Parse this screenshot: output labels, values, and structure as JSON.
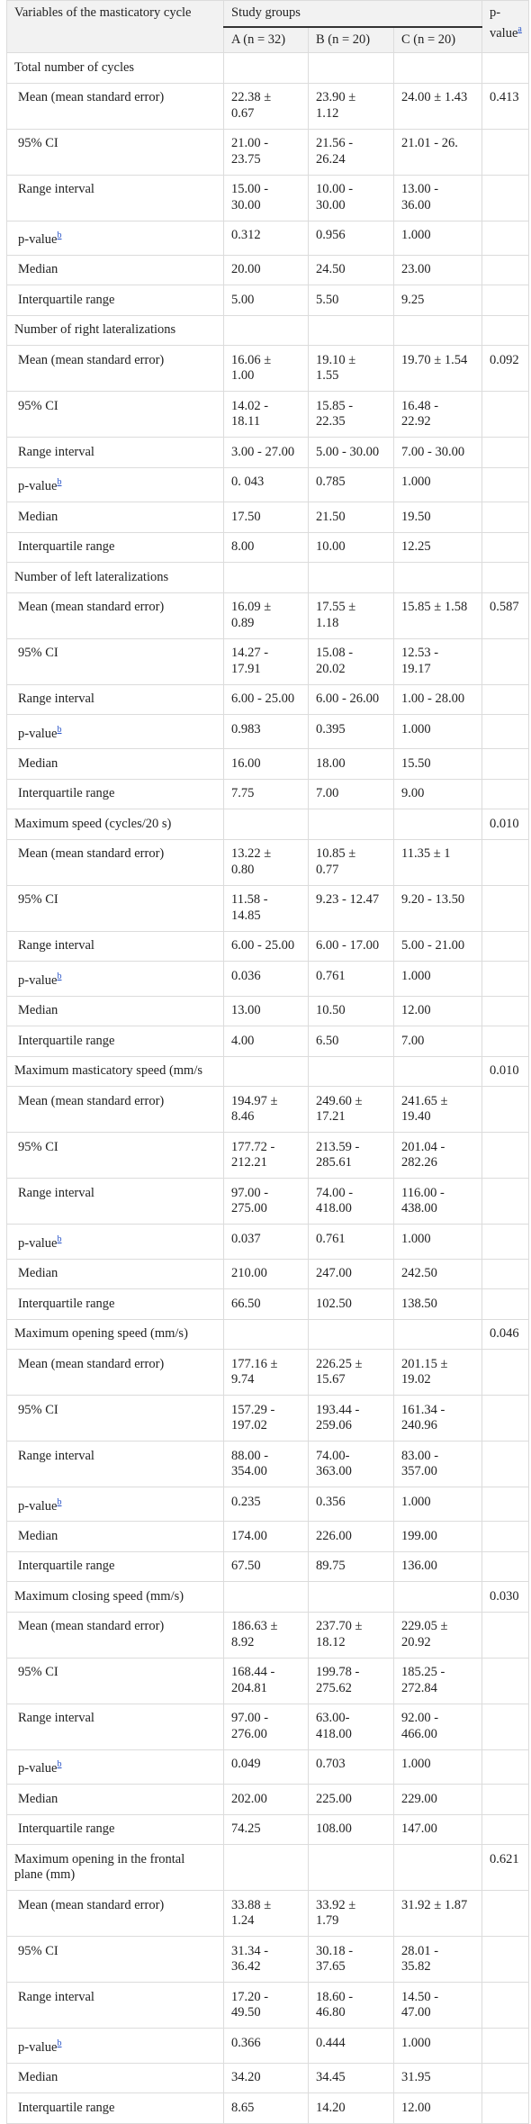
{
  "header": {
    "variable": "Variables of the masticatory cycle",
    "groups": "Study groups",
    "columns": [
      "A (n = 32)",
      "B (n = 20)",
      "C (n = 20)"
    ],
    "p_value": "p-value",
    "p_value_sup": "a"
  },
  "sections": [
    {
      "title": "Total number of cycles",
      "rows": [
        {
          "label": "Mean (mean standard error)",
          "cells": [
            "22.38 ± 0.67",
            "23.90 ± 1.12",
            "24.00 ± 1.43"
          ],
          "p_value": "0.413"
        },
        {
          "label": "95% CI",
          "cells": [
            "21.00 - 23.75",
            "21.56 - 26.24",
            "21.01 - 26."
          ]
        },
        {
          "label": "Range interval",
          "cells": [
            "15.00 - 30.00",
            "10.00 - 30.00",
            "13.00 - 36.00"
          ]
        },
        {
          "label": "p-value",
          "sup": "b",
          "cells": [
            "0.312",
            "0.956",
            "1.000"
          ]
        },
        {
          "label": "Median",
          "cells": [
            "20.00",
            "24.50",
            "23.00"
          ]
        },
        {
          "label": "Interquartile range",
          "cells": [
            "5.00",
            "5.50",
            "9.25"
          ]
        }
      ]
    },
    {
      "title": "Number of right lateralizations",
      "rows": [
        {
          "label": "Mean (mean standard error)",
          "cells": [
            "16.06 ± 1.00",
            "19.10 ± 1.55",
            "19.70 ± 1.54"
          ],
          "p_value": "0.092"
        },
        {
          "label": "95% CI",
          "cells": [
            "14.02 - 18.11",
            "15.85 - 22.35",
            "16.48 - 22.92"
          ]
        },
        {
          "label": "Range interval",
          "cells": [
            "3.00 - 27.00",
            "5.00 - 30.00",
            "7.00 - 30.00"
          ]
        },
        {
          "label": "p-value",
          "sup": "b",
          "cells": [
            "0. 043",
            "0.785",
            "1.000"
          ]
        },
        {
          "label": "Median",
          "cells": [
            "17.50",
            "21.50",
            "19.50"
          ]
        },
        {
          "label": "Interquartile range",
          "cells": [
            "8.00",
            "10.00",
            "12.25"
          ]
        }
      ]
    },
    {
      "title": "Number of left lateralizations",
      "rows": [
        {
          "label": "Mean (mean standard error)",
          "cells": [
            "16.09 ± 0.89",
            "17.55 ± 1.18",
            "15.85 ± 1.58"
          ],
          "p_value": "0.587"
        },
        {
          "label": "95% CI",
          "cells": [
            "14.27 - 17.91",
            "15.08 - 20.02",
            "12.53 - 19.17"
          ]
        },
        {
          "label": "Range interval",
          "cells": [
            "6.00 - 25.00",
            "6.00 - 26.00",
            "1.00 - 28.00"
          ]
        },
        {
          "label": "p-value",
          "sup": "b",
          "cells": [
            "0.983",
            "0.395",
            "1.000"
          ]
        },
        {
          "label": "Median",
          "cells": [
            "16.00",
            "18.00",
            "15.50"
          ]
        },
        {
          "label": "Interquartile range",
          "cells": [
            "7.75",
            "7.00",
            "9.00"
          ]
        }
      ]
    },
    {
      "title": "Maximum speed (cycles/20 s)",
      "p_value": "0.010",
      "rows": [
        {
          "label": "Mean (mean standard error)",
          "cells": [
            "13.22 ± 0.80",
            "10.85 ± 0.77",
            "11.35 ± 1"
          ]
        },
        {
          "label": "95% CI",
          "cells": [
            "11.58 - 14.85",
            "9.23 - 12.47",
            "9.20 - 13.50"
          ]
        },
        {
          "label": "Range interval",
          "cells": [
            "6.00 - 25.00",
            "6.00 - 17.00",
            "5.00 - 21.00"
          ]
        },
        {
          "label": "p-value",
          "sup": "b",
          "cells": [
            "0.036",
            "0.761",
            "1.000"
          ]
        },
        {
          "label": "Median",
          "cells": [
            "13.00",
            "10.50",
            "12.00"
          ]
        },
        {
          "label": "Interquartile range",
          "cells": [
            "4.00",
            "6.50",
            "7.00"
          ]
        }
      ]
    },
    {
      "title": "Maximum masticatory speed (mm/s",
      "p_value": "0.010",
      "rows": [
        {
          "label": "Mean (mean standard error)",
          "cells": [
            "194.97 ± 8.46",
            "249.60 ± 17.21",
            "241.65 ± 19.40"
          ]
        },
        {
          "label": "95% CI",
          "cells": [
            "177.72 - 212.21",
            "213.59 - 285.61",
            "201.04 - 282.26"
          ]
        },
        {
          "label": "Range interval",
          "cells": [
            "97.00 - 275.00",
            "74.00 - 418.00",
            "116.00 - 438.00"
          ]
        },
        {
          "label": "p-value",
          "sup": "b",
          "cells": [
            "0.037",
            "0.761",
            "1.000"
          ]
        },
        {
          "label": "Median",
          "cells": [
            "210.00",
            "247.00",
            "242.50"
          ]
        },
        {
          "label": "Interquartile range",
          "cells": [
            "66.50",
            "102.50",
            "138.50"
          ]
        }
      ]
    },
    {
      "title": "Maximum opening speed (mm/s)",
      "p_value": "0.046",
      "rows": [
        {
          "label": "Mean (mean standard error)",
          "cells": [
            "177.16 ± 9.74",
            "226.25 ± 15.67",
            "201.15 ± 19.02"
          ]
        },
        {
          "label": "95% CI",
          "cells": [
            "157.29 - 197.02",
            "193.44 - 259.06",
            "161.34 - 240.96"
          ]
        },
        {
          "label": "Range interval",
          "cells": [
            "88.00 - 354.00",
            "74.00- 363.00",
            "83.00 - 357.00"
          ]
        },
        {
          "label": "p-value",
          "sup": "b",
          "cells": [
            "0.235",
            "0.356",
            "1.000"
          ]
        },
        {
          "label": "Median",
          "cells": [
            "174.00",
            "226.00",
            "199.00"
          ]
        },
        {
          "label": "Interquartile range",
          "cells": [
            "67.50",
            "89.75",
            "136.00"
          ]
        }
      ]
    },
    {
      "title": "Maximum closing speed (mm/s)",
      "p_value": "0.030",
      "rows": [
        {
          "label": "Mean (mean standard error)",
          "cells": [
            "186.63 ± 8.92",
            "237.70 ± 18.12",
            "229.05 ± 20.92"
          ]
        },
        {
          "label": "95% CI",
          "cells": [
            "168.44 - 204.81",
            "199.78 - 275.62",
            "185.25 - 272.84"
          ]
        },
        {
          "label": "Range interval",
          "cells": [
            "97.00 - 276.00",
            "63.00- 418.00",
            "92.00 - 466.00"
          ]
        },
        {
          "label": "p-value",
          "sup": "b",
          "cells": [
            "0.049",
            "0.703",
            "1.000"
          ]
        },
        {
          "label": "Median",
          "cells": [
            "202.00",
            "225.00",
            "229.00"
          ]
        },
        {
          "label": "Interquartile range",
          "cells": [
            "74.25",
            "108.00",
            "147.00"
          ]
        }
      ]
    },
    {
      "title": "Maximum opening in the frontal plane (mm)",
      "p_value": "0.621",
      "rows": [
        {
          "label": "Mean (mean standard error)",
          "cells": [
            "33.88 ± 1.24",
            "33.92 ± 1.79",
            "31.92 ± 1.87"
          ]
        },
        {
          "label": "95% CI",
          "cells": [
            "31.34 - 36.42",
            "30.18 - 37.65",
            "28.01 - 35.82"
          ]
        },
        {
          "label": "Range interval",
          "cells": [
            "17.20 - 49.50",
            "18.60 - 46.80",
            "14.50 - 47.00"
          ]
        },
        {
          "label": "p-value",
          "sup": "b",
          "cells": [
            "0.366",
            "0.444",
            "1.000"
          ]
        },
        {
          "label": "Median",
          "cells": [
            "34.20",
            "34.45",
            "31.95"
          ]
        },
        {
          "label": "Interquartile range",
          "cells": [
            "8.65",
            "14.20",
            "12.00"
          ]
        }
      ]
    }
  ]
}
